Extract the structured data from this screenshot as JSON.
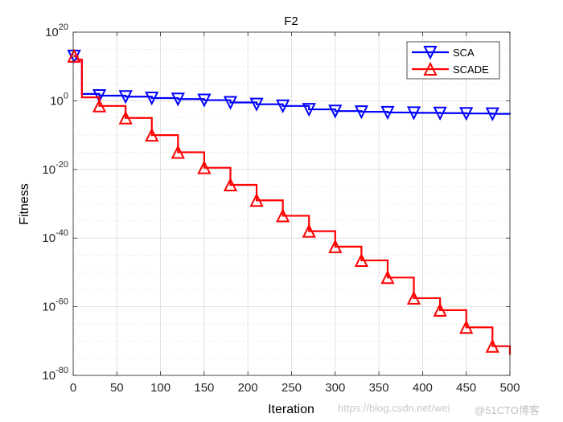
{
  "chart_data": {
    "type": "line",
    "title": "F2",
    "xlabel": "Iteration",
    "ylabel": "Fitness",
    "yscale": "log",
    "xlim": [
      0,
      500
    ],
    "ylim_exp": [
      -80,
      20
    ],
    "x_ticks": [
      0,
      50,
      100,
      150,
      200,
      250,
      300,
      350,
      400,
      450,
      500
    ],
    "y_tick_exponents": [
      -80,
      -60,
      -40,
      -20,
      0,
      20
    ],
    "grid": true,
    "legend_position": "top-right",
    "series": [
      {
        "name": "SCA",
        "color": "#0000ff",
        "marker": "triangle-down",
        "x": [
          1,
          5,
          10,
          30,
          60,
          90,
          120,
          150,
          180,
          210,
          240,
          270,
          300,
          330,
          360,
          390,
          420,
          450,
          480,
          500
        ],
        "log10": [
          13,
          12,
          2,
          1.5,
          1.2,
          0.8,
          0.5,
          0.2,
          -0.5,
          -1,
          -1.5,
          -2.5,
          -3,
          -3.2,
          -3.4,
          -3.5,
          -3.6,
          -3.7,
          -3.8,
          -3.9
        ]
      },
      {
        "name": "SCADE",
        "color": "#ff0000",
        "marker": "triangle-up",
        "x": [
          1,
          5,
          10,
          30,
          60,
          90,
          120,
          150,
          180,
          210,
          240,
          270,
          300,
          330,
          360,
          390,
          420,
          450,
          480,
          500
        ],
        "log10": [
          13,
          12,
          1,
          -1.5,
          -5,
          -10,
          -15,
          -19.5,
          -24.5,
          -29,
          -33.5,
          -38,
          -42.5,
          -46.5,
          -51.5,
          -57.5,
          -61,
          -66,
          -71.5,
          -74
        ]
      }
    ]
  },
  "watermark": {
    "text1": "https://blog.csdn.net/wei",
    "text2": "@51CTO博客"
  }
}
